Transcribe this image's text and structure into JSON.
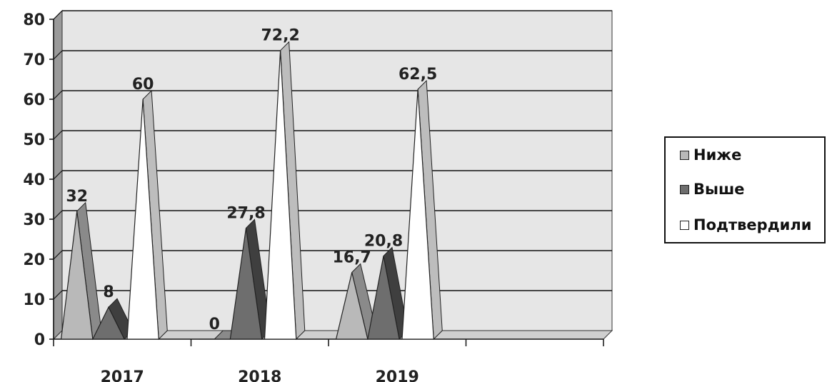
{
  "chart_data": {
    "type": "area",
    "categories": [
      "2017",
      "2018",
      "2019"
    ],
    "ylim": [
      0,
      80
    ],
    "yticks": [
      "0",
      "10",
      "20",
      "30",
      "40",
      "50",
      "60",
      "70",
      "80"
    ],
    "grid": true,
    "legend_position": "right",
    "series": [
      {
        "name": "Ниже",
        "values": [
          32,
          0,
          16.7
        ],
        "labels": [
          "32",
          "0",
          "16,7"
        ],
        "color": "#b9b9b9"
      },
      {
        "name": "Выше",
        "values": [
          8,
          27.8,
          20.8
        ],
        "labels": [
          "8",
          "27,8",
          "20,8"
        ],
        "color": "#6e6e6e"
      },
      {
        "name": "Подтвердили",
        "values": [
          60,
          72.2,
          62.5
        ],
        "labels": [
          "60",
          "72,2",
          "62,5"
        ],
        "color": "#ffffff"
      }
    ]
  }
}
